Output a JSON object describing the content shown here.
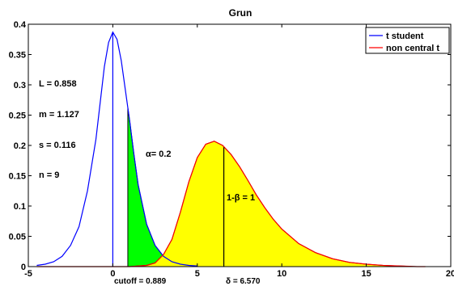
{
  "chart_data": {
    "type": "line",
    "title": "Grun",
    "xlabel": "",
    "ylabel": "",
    "xlim": [
      -5,
      20
    ],
    "ylim": [
      0,
      0.4
    ],
    "x_ticks": [
      -5,
      0,
      5,
      10,
      15,
      20
    ],
    "x_tick_labels": [
      "-5",
      "0",
      "5",
      "10",
      "15",
      "20"
    ],
    "y_ticks": [
      0,
      0.05,
      0.1,
      0.15,
      0.2,
      0.25,
      0.3,
      0.35,
      0.4
    ],
    "y_tick_labels": [
      "0",
      "0.05",
      "0.1",
      "0.15",
      "0.2",
      "0.25",
      "0.3",
      "0.35",
      "0.4"
    ],
    "grid": false,
    "legend_position": "top-right",
    "series": [
      {
        "name": "t student",
        "color": "#0000ff",
        "points": [
          [
            -4.5,
            0.002
          ],
          [
            -4,
            0.004
          ],
          [
            -3.5,
            0.008
          ],
          [
            -3,
            0.017
          ],
          [
            -2.5,
            0.035
          ],
          [
            -2,
            0.066
          ],
          [
            -1.5,
            0.125
          ],
          [
            -1,
            0.21
          ],
          [
            -0.75,
            0.27
          ],
          [
            -0.5,
            0.33
          ],
          [
            -0.25,
            0.37
          ],
          [
            0,
            0.387
          ],
          [
            0.25,
            0.375
          ],
          [
            0.5,
            0.34
          ],
          [
            0.75,
            0.29
          ],
          [
            1,
            0.24
          ],
          [
            1.25,
            0.185
          ],
          [
            1.5,
            0.135
          ],
          [
            2,
            0.07
          ],
          [
            2.5,
            0.035
          ],
          [
            3,
            0.017
          ],
          [
            3.5,
            0.008
          ],
          [
            4,
            0.004
          ],
          [
            4.5,
            0.002
          ],
          [
            5,
            0.001
          ]
        ]
      },
      {
        "name": "non central t",
        "color": "#ff0000",
        "points": [
          [
            -4.5,
            0
          ],
          [
            1,
            0
          ],
          [
            1.5,
            0.001
          ],
          [
            2,
            0.002
          ],
          [
            2.5,
            0.006
          ],
          [
            3,
            0.02
          ],
          [
            3.5,
            0.045
          ],
          [
            4,
            0.09
          ],
          [
            4.5,
            0.14
          ],
          [
            5,
            0.18
          ],
          [
            5.5,
            0.202
          ],
          [
            6,
            0.207
          ],
          [
            6.5,
            0.2
          ],
          [
            7,
            0.185
          ],
          [
            7.5,
            0.165
          ],
          [
            8,
            0.142
          ],
          [
            8.5,
            0.118
          ],
          [
            9,
            0.097
          ],
          [
            9.5,
            0.078
          ],
          [
            10,
            0.062
          ],
          [
            11,
            0.038
          ],
          [
            12,
            0.023
          ],
          [
            13,
            0.013
          ],
          [
            14,
            0.007
          ],
          [
            15,
            0.004
          ],
          [
            16,
            0.002
          ],
          [
            17,
            0.001
          ],
          [
            18,
            0
          ],
          [
            18.5,
            0
          ]
        ]
      }
    ],
    "vertical_lines": [
      {
        "name": "t student mean",
        "x": 0,
        "y_top": 0.387,
        "color": "#0000ff"
      },
      {
        "name": "delta",
        "x": 6.57,
        "y_top": 0.197,
        "color": "#000000"
      }
    ],
    "shaded_regions": [
      {
        "name": "alpha",
        "series": "t student",
        "from": 0.889,
        "to": 5,
        "color": "#00ff00"
      },
      {
        "name": "power",
        "series": "non central t",
        "from": 0.889,
        "to": 18.5,
        "color": "#ffff00"
      }
    ],
    "annotations": {
      "L": "L = 0.858",
      "m": "m = 1.127",
      "s": "s = 0.116",
      "n": "n = 9",
      "alpha": "α= 0.2",
      "power": "1-β = 1",
      "cutoff": "cutoff = 0.889",
      "delta": "δ = 6.570"
    },
    "cutoff": 0.889,
    "delta": 6.57
  }
}
